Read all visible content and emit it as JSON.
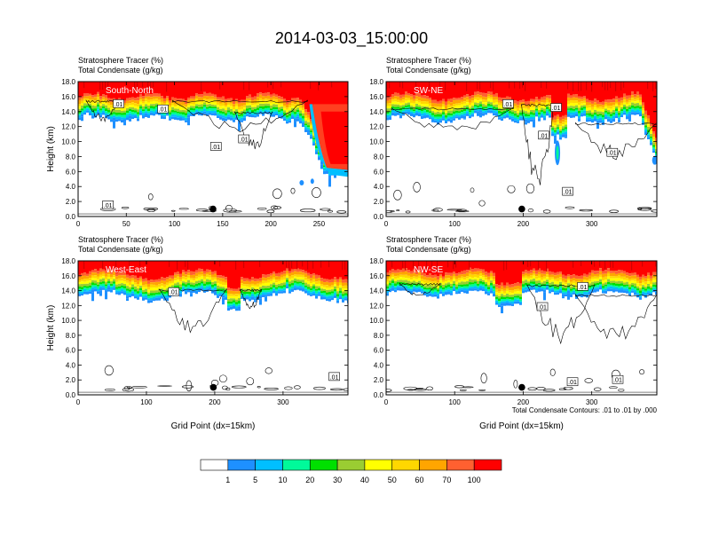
{
  "title": "2014-03-03_15:00:00",
  "colors": {
    "levels": [
      "#ffffff",
      "#1e90ff",
      "#00bfff",
      "#00fa9a",
      "#00e000",
      "#9acd32",
      "#ffff00",
      "#ffd700",
      "#ffa500",
      "#ff6030",
      "#ff0000"
    ]
  },
  "colorbar": {
    "labels": [
      "1",
      "5",
      "10",
      "20",
      "30",
      "40",
      "50",
      "60",
      "70",
      "100"
    ]
  },
  "contour_note": "Total Condensate Contours: .01 to .01 by .000",
  "chart_data": [
    {
      "type": "heatmap",
      "name": "South-North",
      "subtitle1": "Stratosphere Tracer   (%)",
      "subtitle2": "Total Condensate   (g/kg)",
      "ylabel": "Height (km)",
      "xlabel": "",
      "xlim": [
        0,
        280
      ],
      "ylim": [
        0,
        18
      ],
      "xticks": [
        "0",
        "50",
        "100",
        "150",
        "200",
        "250"
      ],
      "yticks": [
        "0.0",
        "2.0",
        "4.0",
        "6.0",
        "8.0",
        "10.0",
        "12.0",
        "14.0",
        "16.0",
        "18.0"
      ],
      "marker_x": 140,
      "contour_labels": [
        {
          "text": ".01",
          "x": 42,
          "y": 15.0
        },
        {
          "text": ".01",
          "x": 88,
          "y": 14.3
        },
        {
          "text": ".01",
          "x": 172,
          "y": 10.3
        },
        {
          "text": ".01",
          "x": 143,
          "y": 9.3
        },
        {
          "text": ".01",
          "x": 31,
          "y": 1.5
        }
      ]
    },
    {
      "type": "heatmap",
      "name": "SW-NE",
      "subtitle1": "Stratosphere Tracer   (%)",
      "subtitle2": "Total Condensate   (g/kg)",
      "ylabel": "",
      "xlabel": "",
      "xlim": [
        0,
        395
      ],
      "ylim": [
        0,
        18
      ],
      "xticks": [
        "0",
        "100",
        "200",
        "300"
      ],
      "yticks": [
        "0.0",
        "2.0",
        "4.0",
        "6.0",
        "8.0",
        "10.0",
        "12.0",
        "14.0",
        "16.0",
        "18.0"
      ],
      "marker_x": 198,
      "contour_labels": [
        {
          "text": ".01",
          "x": 178,
          "y": 15.0
        },
        {
          "text": ".01",
          "x": 248,
          "y": 14.5
        },
        {
          "text": ".01",
          "x": 230,
          "y": 10.8
        },
        {
          "text": ".01",
          "x": 330,
          "y": 8.5
        },
        {
          "text": ".01",
          "x": 265,
          "y": 3.3
        }
      ]
    },
    {
      "type": "heatmap",
      "name": "West-East",
      "subtitle1": "Stratosphere Tracer   (%)",
      "subtitle2": "Total Condensate   (g/kg)",
      "ylabel": "Height (km)",
      "xlabel": "Grid Point (dx=15km)",
      "xlim": [
        0,
        395
      ],
      "ylim": [
        0,
        18
      ],
      "xticks": [
        "0",
        "100",
        "200",
        "300"
      ],
      "yticks": [
        "0.0",
        "2.0",
        "4.0",
        "6.0",
        "8.0",
        "10.0",
        "12.0",
        "14.0",
        "16.0",
        "18.0"
      ],
      "marker_x": 198,
      "contour_labels": [
        {
          "text": ".01",
          "x": 140,
          "y": 13.8
        },
        {
          "text": ".01",
          "x": 375,
          "y": 2.4
        }
      ]
    },
    {
      "type": "heatmap",
      "name": "NW-SE",
      "subtitle1": "Stratosphere Tracer   (%)",
      "subtitle2": "Total Condensate   (g/kg)",
      "ylabel": "",
      "xlabel": "Grid Point (dx=15km)",
      "xlim": [
        0,
        395
      ],
      "ylim": [
        0,
        18
      ],
      "xticks": [
        "0",
        "100",
        "200",
        "300"
      ],
      "yticks": [
        "0.0",
        "2.0",
        "4.0",
        "6.0",
        "8.0",
        "10.0",
        "12.0",
        "14.0",
        "16.0",
        "18.0"
      ],
      "marker_x": 198,
      "contour_labels": [
        {
          "text": ".01",
          "x": 287,
          "y": 14.5
        },
        {
          "text": ".01",
          "x": 228,
          "y": 11.8
        },
        {
          "text": ".01",
          "x": 272,
          "y": 1.7
        },
        {
          "text": ".01",
          "x": 338,
          "y": 2.0
        }
      ]
    }
  ]
}
